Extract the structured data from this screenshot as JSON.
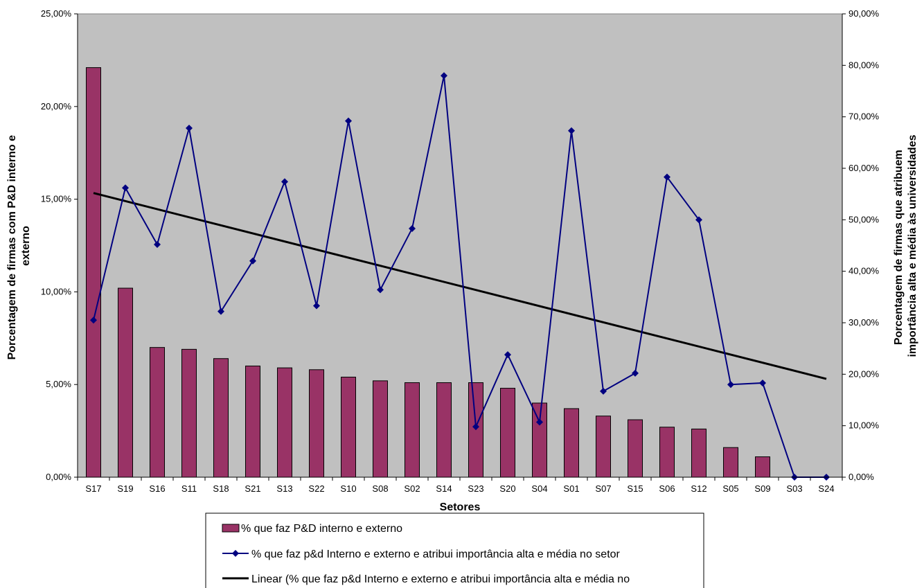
{
  "chart_data": {
    "type": "bar",
    "categories": [
      "S17",
      "S19",
      "S16",
      "S11",
      "S18",
      "S21",
      "S13",
      "S22",
      "S10",
      "S08",
      "S02",
      "S14",
      "S23",
      "S20",
      "S04",
      "S01",
      "S07",
      "S15",
      "S06",
      "S12",
      "S05",
      "S09",
      "S03",
      "S24"
    ],
    "xlabel": "Setores",
    "ylabel_left": [
      "Porcentagem de firmas com P&D interno e",
      "externo"
    ],
    "ylabel_right": [
      "Porcentagem de firmas que atribuem",
      "importância alta e média às universidades"
    ],
    "ylim_left": [
      0,
      25
    ],
    "ylim_right": [
      0,
      90
    ],
    "yticks_left": [
      "0,00%",
      "5,00%",
      "10,00%",
      "15,00%",
      "20,00%",
      "25,00%"
    ],
    "yticks_right": [
      "0,00%",
      "10,00%",
      "20,00%",
      "30,00%",
      "40,00%",
      "50,00%",
      "60,00%",
      "70,00%",
      "80,00%",
      "90,00%"
    ],
    "grid": false,
    "legend_position": "bottom",
    "series": [
      {
        "name": "% que faz P&D interno e externo",
        "kind": "bar",
        "axis": "left",
        "color": "#993366",
        "values": [
          22.1,
          10.2,
          7.0,
          6.9,
          6.4,
          6.0,
          5.9,
          5.8,
          5.4,
          5.2,
          5.1,
          5.1,
          5.1,
          4.8,
          4.0,
          3.7,
          3.3,
          3.1,
          2.7,
          2.6,
          1.6,
          1.1,
          0,
          0
        ]
      },
      {
        "name": "% que faz p&d Interno e externo e atribui importância alta e média no setor",
        "kind": "line",
        "axis": "right",
        "color": "#000080",
        "values": [
          30.5,
          56.2,
          45.2,
          67.8,
          32.2,
          42.0,
          57.4,
          33.3,
          69.2,
          36.4,
          48.3,
          78.0,
          9.8,
          23.8,
          10.7,
          67.3,
          16.7,
          20.2,
          58.3,
          50.0,
          18.0,
          18.3,
          0,
          0
        ]
      },
      {
        "name": "Linear (% que faz p&d Interno e externo e atribui importância alta e média no",
        "kind": "trendline",
        "axis": "right",
        "color": "#000000",
        "start": 55.2,
        "end": 19.1
      }
    ]
  }
}
